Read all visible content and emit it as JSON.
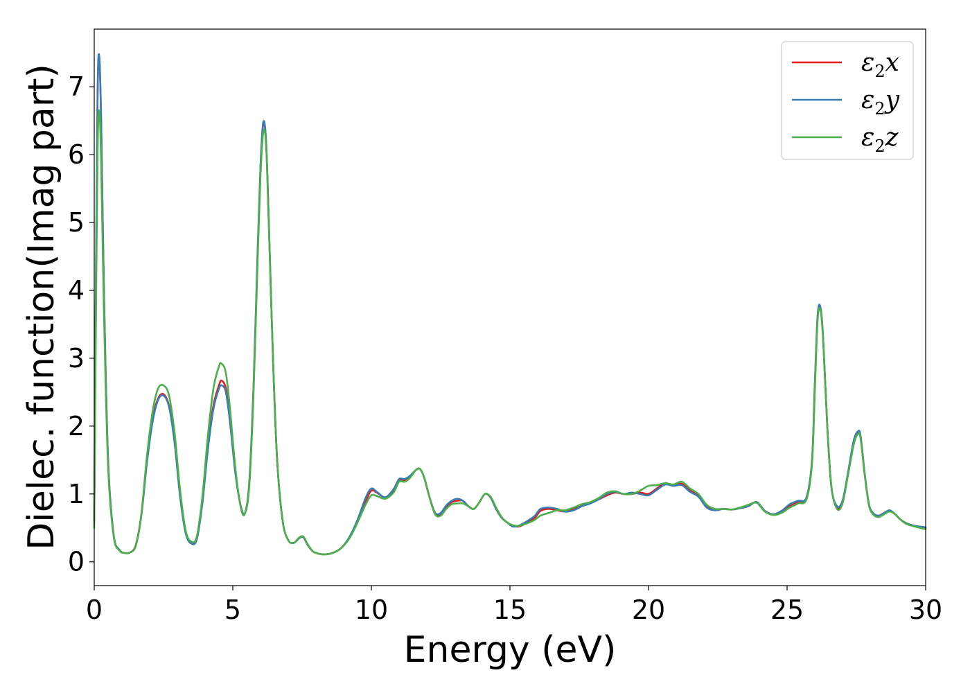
{
  "chart_data": {
    "type": "line",
    "xlabel": "Energy (eV)",
    "ylabel": "Dielec. function(Imag part)",
    "xlim": [
      0,
      30
    ],
    "ylim": [
      -0.35,
      7.85
    ],
    "xticks": [
      0,
      5,
      10,
      15,
      20,
      25,
      30
    ],
    "xtick_labels": [
      "0",
      "5",
      "10",
      "15",
      "20",
      "25",
      "30"
    ],
    "yticks": [
      0,
      1,
      2,
      3,
      4,
      5,
      6,
      7
    ],
    "ytick_labels": [
      "0",
      "1",
      "2",
      "3",
      "4",
      "5",
      "6",
      "7"
    ],
    "grid": false,
    "legend": "top-right",
    "series": [
      {
        "name": "ε2x",
        "name_parts": {
          "sym": "ε",
          "sub": "2",
          "var": "x"
        },
        "color": "#e41a1c",
        "x": [
          0.0,
          0.05,
          0.12,
          0.18,
          0.25,
          0.35,
          0.5,
          0.7,
          0.9,
          1.1,
          1.3,
          1.5,
          1.7,
          1.9,
          2.1,
          2.3,
          2.5,
          2.7,
          2.9,
          3.1,
          3.3,
          3.5,
          3.7,
          3.9,
          4.1,
          4.3,
          4.5,
          4.6,
          4.75,
          4.9,
          5.1,
          5.3,
          5.45,
          5.6,
          5.75,
          5.9,
          6.0,
          6.1,
          6.2,
          6.3,
          6.45,
          6.6,
          6.8,
          7.0,
          7.2,
          7.4,
          7.55,
          7.7,
          7.9,
          8.1,
          8.3,
          8.6,
          8.9,
          9.2,
          9.5,
          9.8,
          10.0,
          10.2,
          10.5,
          10.8,
          11.0,
          11.2,
          11.4,
          11.6,
          11.75,
          11.9,
          12.1,
          12.3,
          12.5,
          12.7,
          12.9,
          13.1,
          13.3,
          13.5,
          13.7,
          13.9,
          14.1,
          14.3,
          14.5,
          14.7,
          14.9,
          15.1,
          15.3,
          15.5,
          15.7,
          15.9,
          16.1,
          16.4,
          16.7,
          17.0,
          17.3,
          17.6,
          17.9,
          18.2,
          18.5,
          18.8,
          19.1,
          19.4,
          19.7,
          20.0,
          20.3,
          20.6,
          20.9,
          21.2,
          21.5,
          21.8,
          22.1,
          22.4,
          22.7,
          23.0,
          23.3,
          23.6,
          23.9,
          24.2,
          24.5,
          24.8,
          25.1,
          25.4,
          25.7,
          25.9,
          26.0,
          26.1,
          26.2,
          26.3,
          26.45,
          26.6,
          26.8,
          27.0,
          27.2,
          27.4,
          27.55,
          27.65,
          27.8,
          27.95,
          28.1,
          28.3,
          28.5,
          28.7,
          28.9,
          29.1,
          29.3,
          29.6,
          30.0
        ],
        "values": [
          0.6,
          3.5,
          6.8,
          7.45,
          6.5,
          4.0,
          1.5,
          0.4,
          0.18,
          0.13,
          0.14,
          0.25,
          0.7,
          1.5,
          2.1,
          2.4,
          2.47,
          2.3,
          1.8,
          1.0,
          0.45,
          0.28,
          0.35,
          0.9,
          1.7,
          2.3,
          2.6,
          2.67,
          2.55,
          2.1,
          1.3,
          0.8,
          0.73,
          1.2,
          2.6,
          4.6,
          5.8,
          6.45,
          6.2,
          5.0,
          3.0,
          1.5,
          0.6,
          0.32,
          0.28,
          0.35,
          0.36,
          0.25,
          0.15,
          0.12,
          0.11,
          0.13,
          0.2,
          0.35,
          0.6,
          0.9,
          1.05,
          1.02,
          0.95,
          1.05,
          1.2,
          1.2,
          1.25,
          1.35,
          1.37,
          1.25,
          0.95,
          0.72,
          0.7,
          0.8,
          0.88,
          0.9,
          0.9,
          0.82,
          0.78,
          0.88,
          1.0,
          0.95,
          0.78,
          0.65,
          0.58,
          0.53,
          0.52,
          0.55,
          0.6,
          0.65,
          0.75,
          0.78,
          0.76,
          0.74,
          0.78,
          0.84,
          0.88,
          0.92,
          0.98,
          1.02,
          1.0,
          1.0,
          1.02,
          1.0,
          1.08,
          1.16,
          1.12,
          1.15,
          1.05,
          0.98,
          0.82,
          0.76,
          0.78,
          0.77,
          0.79,
          0.82,
          0.88,
          0.75,
          0.7,
          0.73,
          0.82,
          0.88,
          0.95,
          1.5,
          2.6,
          3.6,
          3.75,
          3.3,
          2.0,
          1.1,
          0.8,
          0.88,
          1.3,
          1.75,
          1.9,
          1.85,
          1.3,
          0.85,
          0.72,
          0.68,
          0.72,
          0.75,
          0.7,
          0.62,
          0.57,
          0.53,
          0.5
        ]
      },
      {
        "name": "ε2y",
        "name_parts": {
          "sym": "ε",
          "sub": "2",
          "var": "y"
        },
        "color": "#377eb8",
        "x": [
          0.0,
          0.05,
          0.12,
          0.18,
          0.25,
          0.35,
          0.5,
          0.7,
          0.9,
          1.1,
          1.3,
          1.5,
          1.7,
          1.9,
          2.1,
          2.3,
          2.5,
          2.7,
          2.9,
          3.1,
          3.3,
          3.5,
          3.7,
          3.9,
          4.1,
          4.3,
          4.5,
          4.6,
          4.75,
          4.9,
          5.1,
          5.3,
          5.45,
          5.6,
          5.75,
          5.9,
          6.0,
          6.1,
          6.2,
          6.3,
          6.45,
          6.6,
          6.8,
          7.0,
          7.2,
          7.4,
          7.55,
          7.7,
          7.9,
          8.1,
          8.3,
          8.6,
          8.9,
          9.2,
          9.5,
          9.8,
          10.0,
          10.2,
          10.5,
          10.8,
          11.0,
          11.2,
          11.4,
          11.6,
          11.75,
          11.9,
          12.1,
          12.3,
          12.5,
          12.7,
          12.9,
          13.1,
          13.3,
          13.5,
          13.7,
          13.9,
          14.1,
          14.3,
          14.5,
          14.7,
          14.9,
          15.1,
          15.3,
          15.5,
          15.7,
          15.9,
          16.1,
          16.4,
          16.7,
          17.0,
          17.3,
          17.6,
          17.9,
          18.2,
          18.5,
          18.8,
          19.1,
          19.4,
          19.7,
          20.0,
          20.3,
          20.6,
          20.9,
          21.2,
          21.5,
          21.8,
          22.1,
          22.4,
          22.7,
          23.0,
          23.3,
          23.6,
          23.9,
          24.2,
          24.5,
          24.8,
          25.1,
          25.4,
          25.7,
          25.9,
          26.0,
          26.1,
          26.2,
          26.3,
          26.45,
          26.6,
          26.8,
          27.0,
          27.2,
          27.4,
          27.55,
          27.65,
          27.8,
          27.95,
          28.1,
          28.3,
          28.5,
          28.7,
          28.9,
          29.1,
          29.3,
          29.6,
          30.0
        ],
        "values": [
          0.6,
          3.6,
          6.9,
          7.45,
          6.5,
          4.0,
          1.5,
          0.4,
          0.18,
          0.13,
          0.14,
          0.24,
          0.68,
          1.45,
          2.05,
          2.38,
          2.45,
          2.28,
          1.75,
          0.95,
          0.42,
          0.27,
          0.33,
          0.85,
          1.65,
          2.25,
          2.55,
          2.6,
          2.5,
          2.05,
          1.28,
          0.8,
          0.73,
          1.2,
          2.6,
          4.65,
          5.85,
          6.48,
          6.2,
          5.0,
          3.0,
          1.5,
          0.6,
          0.32,
          0.28,
          0.35,
          0.36,
          0.25,
          0.15,
          0.12,
          0.11,
          0.13,
          0.2,
          0.36,
          0.62,
          0.95,
          1.08,
          1.03,
          0.95,
          1.07,
          1.22,
          1.22,
          1.27,
          1.35,
          1.37,
          1.25,
          0.95,
          0.72,
          0.72,
          0.83,
          0.9,
          0.93,
          0.9,
          0.82,
          0.78,
          0.88,
          1.0,
          0.95,
          0.78,
          0.65,
          0.58,
          0.52,
          0.53,
          0.57,
          0.62,
          0.68,
          0.78,
          0.8,
          0.78,
          0.74,
          0.76,
          0.82,
          0.86,
          0.92,
          1.0,
          1.03,
          1.0,
          1.02,
          1.0,
          0.98,
          1.06,
          1.14,
          1.12,
          1.13,
          1.03,
          0.96,
          0.8,
          0.76,
          0.78,
          0.77,
          0.79,
          0.82,
          0.88,
          0.75,
          0.7,
          0.75,
          0.85,
          0.9,
          0.95,
          1.5,
          2.6,
          3.62,
          3.76,
          3.3,
          2.0,
          1.1,
          0.82,
          0.9,
          1.32,
          1.78,
          1.92,
          1.86,
          1.3,
          0.86,
          0.72,
          0.68,
          0.72,
          0.76,
          0.7,
          0.62,
          0.57,
          0.53,
          0.51
        ]
      },
      {
        "name": "ε2z",
        "name_parts": {
          "sym": "ε",
          "sub": "2",
          "var": "z"
        },
        "color": "#4daf4a",
        "x": [
          0.0,
          0.05,
          0.12,
          0.18,
          0.25,
          0.35,
          0.5,
          0.7,
          0.9,
          1.1,
          1.3,
          1.5,
          1.7,
          1.9,
          2.1,
          2.3,
          2.5,
          2.7,
          2.9,
          3.1,
          3.3,
          3.5,
          3.7,
          3.9,
          4.1,
          4.3,
          4.5,
          4.6,
          4.75,
          4.9,
          5.1,
          5.3,
          5.45,
          5.6,
          5.75,
          5.9,
          6.0,
          6.1,
          6.2,
          6.3,
          6.45,
          6.6,
          6.8,
          7.0,
          7.2,
          7.4,
          7.55,
          7.7,
          7.9,
          8.1,
          8.3,
          8.6,
          8.9,
          9.2,
          9.5,
          9.8,
          10.0,
          10.2,
          10.5,
          10.8,
          11.0,
          11.2,
          11.4,
          11.6,
          11.75,
          11.9,
          12.1,
          12.3,
          12.5,
          12.7,
          12.9,
          13.1,
          13.3,
          13.5,
          13.7,
          13.9,
          14.1,
          14.3,
          14.5,
          14.7,
          14.9,
          15.1,
          15.3,
          15.5,
          15.7,
          15.9,
          16.1,
          16.4,
          16.7,
          17.0,
          17.3,
          17.6,
          17.9,
          18.2,
          18.5,
          18.8,
          19.1,
          19.4,
          19.7,
          20.0,
          20.3,
          20.6,
          20.9,
          21.2,
          21.5,
          21.8,
          22.1,
          22.4,
          22.7,
          23.0,
          23.3,
          23.6,
          23.9,
          24.2,
          24.5,
          24.8,
          25.1,
          25.4,
          25.7,
          25.9,
          26.0,
          26.1,
          26.2,
          26.3,
          26.45,
          26.6,
          26.8,
          27.0,
          27.2,
          27.4,
          27.55,
          27.65,
          27.8,
          27.95,
          28.1,
          28.3,
          28.5,
          28.7,
          28.9,
          29.1,
          29.3,
          29.6,
          30.0
        ],
        "values": [
          0.5,
          3.0,
          6.0,
          6.65,
          5.9,
          3.7,
          1.4,
          0.38,
          0.17,
          0.13,
          0.14,
          0.24,
          0.7,
          1.55,
          2.2,
          2.55,
          2.6,
          2.45,
          1.9,
          1.05,
          0.46,
          0.3,
          0.37,
          0.95,
          1.85,
          2.55,
          2.88,
          2.92,
          2.78,
          2.25,
          1.35,
          0.78,
          0.72,
          1.15,
          2.5,
          4.5,
          5.7,
          6.33,
          6.15,
          4.95,
          3.0,
          1.5,
          0.6,
          0.32,
          0.28,
          0.36,
          0.37,
          0.26,
          0.15,
          0.12,
          0.11,
          0.13,
          0.2,
          0.34,
          0.58,
          0.85,
          0.98,
          0.97,
          0.93,
          1.02,
          1.18,
          1.18,
          1.24,
          1.35,
          1.37,
          1.25,
          0.95,
          0.7,
          0.68,
          0.78,
          0.85,
          0.86,
          0.86,
          0.82,
          0.78,
          0.88,
          1.0,
          0.96,
          0.8,
          0.66,
          0.58,
          0.54,
          0.53,
          0.55,
          0.58,
          0.62,
          0.68,
          0.72,
          0.76,
          0.76,
          0.8,
          0.85,
          0.88,
          0.94,
          1.02,
          1.04,
          1.0,
          1.0,
          1.05,
          1.12,
          1.13,
          1.16,
          1.14,
          1.18,
          1.08,
          1.0,
          0.84,
          0.78,
          0.78,
          0.77,
          0.8,
          0.84,
          0.87,
          0.74,
          0.69,
          0.72,
          0.8,
          0.86,
          0.92,
          1.45,
          2.5,
          3.55,
          3.72,
          3.28,
          2.0,
          1.1,
          0.78,
          0.86,
          1.28,
          1.72,
          1.88,
          1.82,
          1.28,
          0.84,
          0.7,
          0.66,
          0.7,
          0.74,
          0.7,
          0.62,
          0.56,
          0.52,
          0.48
        ]
      }
    ]
  }
}
